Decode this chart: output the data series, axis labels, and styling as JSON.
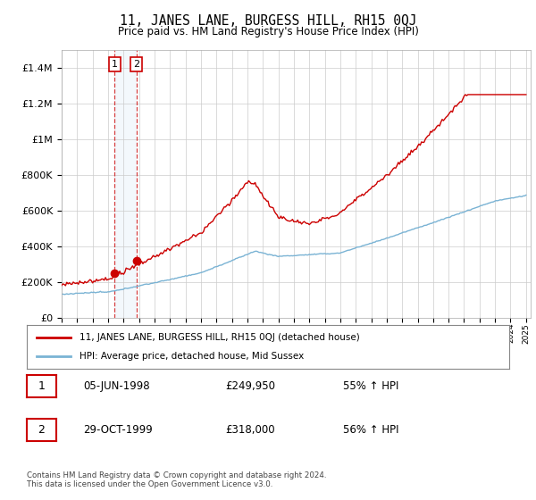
{
  "title": "11, JANES LANE, BURGESS HILL, RH15 0QJ",
  "subtitle": "Price paid vs. HM Land Registry's House Price Index (HPI)",
  "ylim": [
    0,
    1500000
  ],
  "yticks": [
    0,
    200000,
    400000,
    600000,
    800000,
    1000000,
    1200000,
    1400000
  ],
  "ytick_labels": [
    "£0",
    "£200K",
    "£400K",
    "£600K",
    "£800K",
    "£1M",
    "£1.2M",
    "£1.4M"
  ],
  "hpi_color": "#7ab3d4",
  "price_color": "#cc0000",
  "span_color": "#d0e4f5",
  "sale1_date": 1998.43,
  "sale1_price": 249950,
  "sale2_date": 1999.83,
  "sale2_price": 318000,
  "legend_line1": "11, JANES LANE, BURGESS HILL, RH15 0QJ (detached house)",
  "legend_line2": "HPI: Average price, detached house, Mid Sussex",
  "table_row1": [
    "1",
    "05-JUN-1998",
    "£249,950",
    "55% ↑ HPI"
  ],
  "table_row2": [
    "2",
    "29-OCT-1999",
    "£318,000",
    "56% ↑ HPI"
  ],
  "footnote": "Contains HM Land Registry data © Crown copyright and database right 2024.\nThis data is licensed under the Open Government Licence v3.0.",
  "background_color": "#ffffff",
  "grid_color": "#cccccc"
}
